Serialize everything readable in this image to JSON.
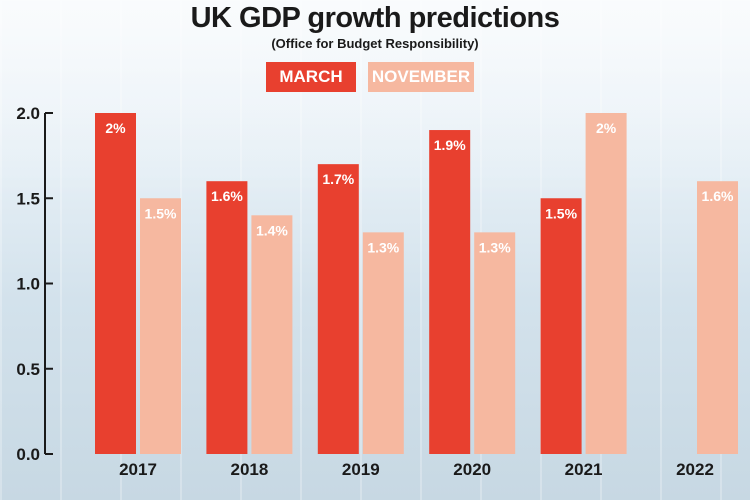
{
  "chart_data": {
    "type": "bar",
    "title": "UK GDP growth predictions",
    "subtitle": "(Office for Budget Responsibility)",
    "categories": [
      "2017",
      "2018",
      "2019",
      "2020",
      "2021",
      "2022"
    ],
    "series": [
      {
        "name": "MARCH",
        "color": "#e8402f",
        "values": [
          2.0,
          1.6,
          1.7,
          1.9,
          1.5,
          null
        ],
        "labels": [
          "2%",
          "1.6%",
          "1.7%",
          "1.9%",
          "1.5%",
          null
        ]
      },
      {
        "name": "NOVEMBER",
        "color": "#f6b8a0",
        "values": [
          1.5,
          1.4,
          1.3,
          1.3,
          2.0,
          1.6
        ],
        "labels": [
          "1.5%",
          "1.4%",
          "1.3%",
          "1.3%",
          "2%",
          "1.6%"
        ]
      }
    ],
    "y_ticks": [
      "0.0",
      "0.5",
      "1.0",
      "1.5",
      "2.0"
    ],
    "ylim": [
      0,
      2.0
    ],
    "grid": false,
    "legend_position": "top-center"
  }
}
